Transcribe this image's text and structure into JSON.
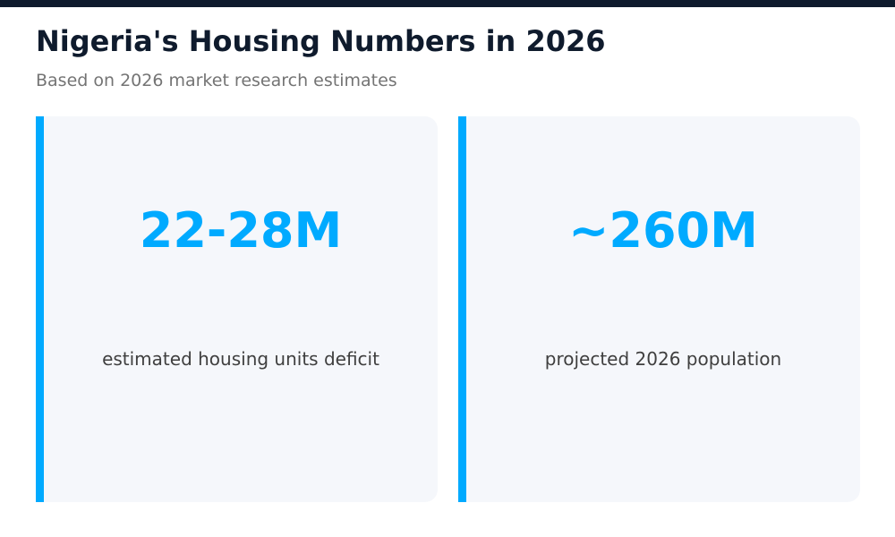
{
  "header": {
    "title": "Nigeria's Housing Numbers in 2026",
    "subtitle": "Based on 2026 market research estimates"
  },
  "stats": [
    {
      "value": "22-28M",
      "label": "estimated housing units deficit"
    },
    {
      "value": "~260M",
      "label": "projected 2026 population"
    }
  ],
  "colors": {
    "top_bar": "#0f1b2d",
    "title": "#0f1b2d",
    "subtitle": "#747474",
    "card_background": "#f5f7fb",
    "accent": "#00aaff",
    "label": "#3f3f3f"
  }
}
